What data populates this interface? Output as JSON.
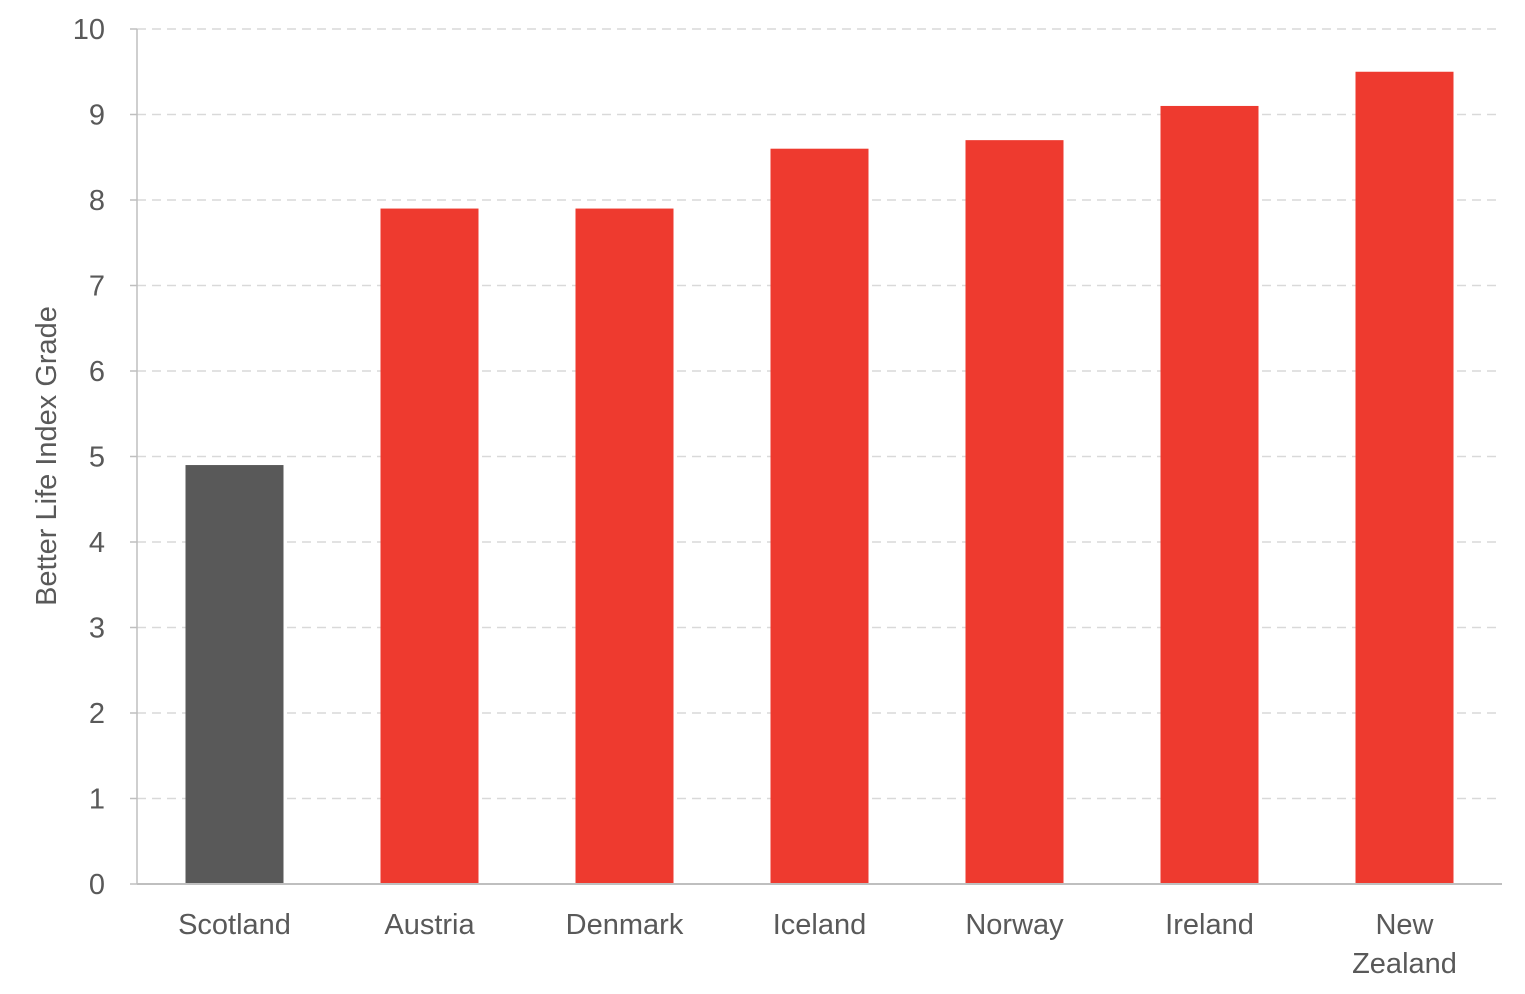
{
  "chart_data": {
    "type": "bar",
    "title": "",
    "xlabel": "",
    "ylabel": "Better Life Index Grade",
    "ylim": [
      0,
      10
    ],
    "yticks": [
      "0",
      "1",
      "2",
      "3",
      "4",
      "5",
      "6",
      "7",
      "8",
      "9",
      "10"
    ],
    "grid": true,
    "categories": [
      "Scotland",
      "Austria",
      "Denmark",
      "Iceland",
      "Norway",
      "Ireland",
      "New Zealand"
    ],
    "category_label_lines": [
      [
        "Scotland"
      ],
      [
        "Austria"
      ],
      [
        "Denmark"
      ],
      [
        "Iceland"
      ],
      [
        "Norway"
      ],
      [
        "Ireland"
      ],
      [
        "New",
        "Zealand"
      ]
    ],
    "values": [
      4.9,
      7.9,
      7.9,
      8.6,
      8.7,
      9.1,
      9.5
    ],
    "bar_colors": [
      "#595959",
      "#ee3a2f",
      "#ee3a2f",
      "#ee3a2f",
      "#ee3a2f",
      "#ee3a2f",
      "#ee3a2f"
    ],
    "grid_color": "#d9d9d9",
    "axis_color": "#bfbfbf",
    "text_color": "#595959"
  }
}
